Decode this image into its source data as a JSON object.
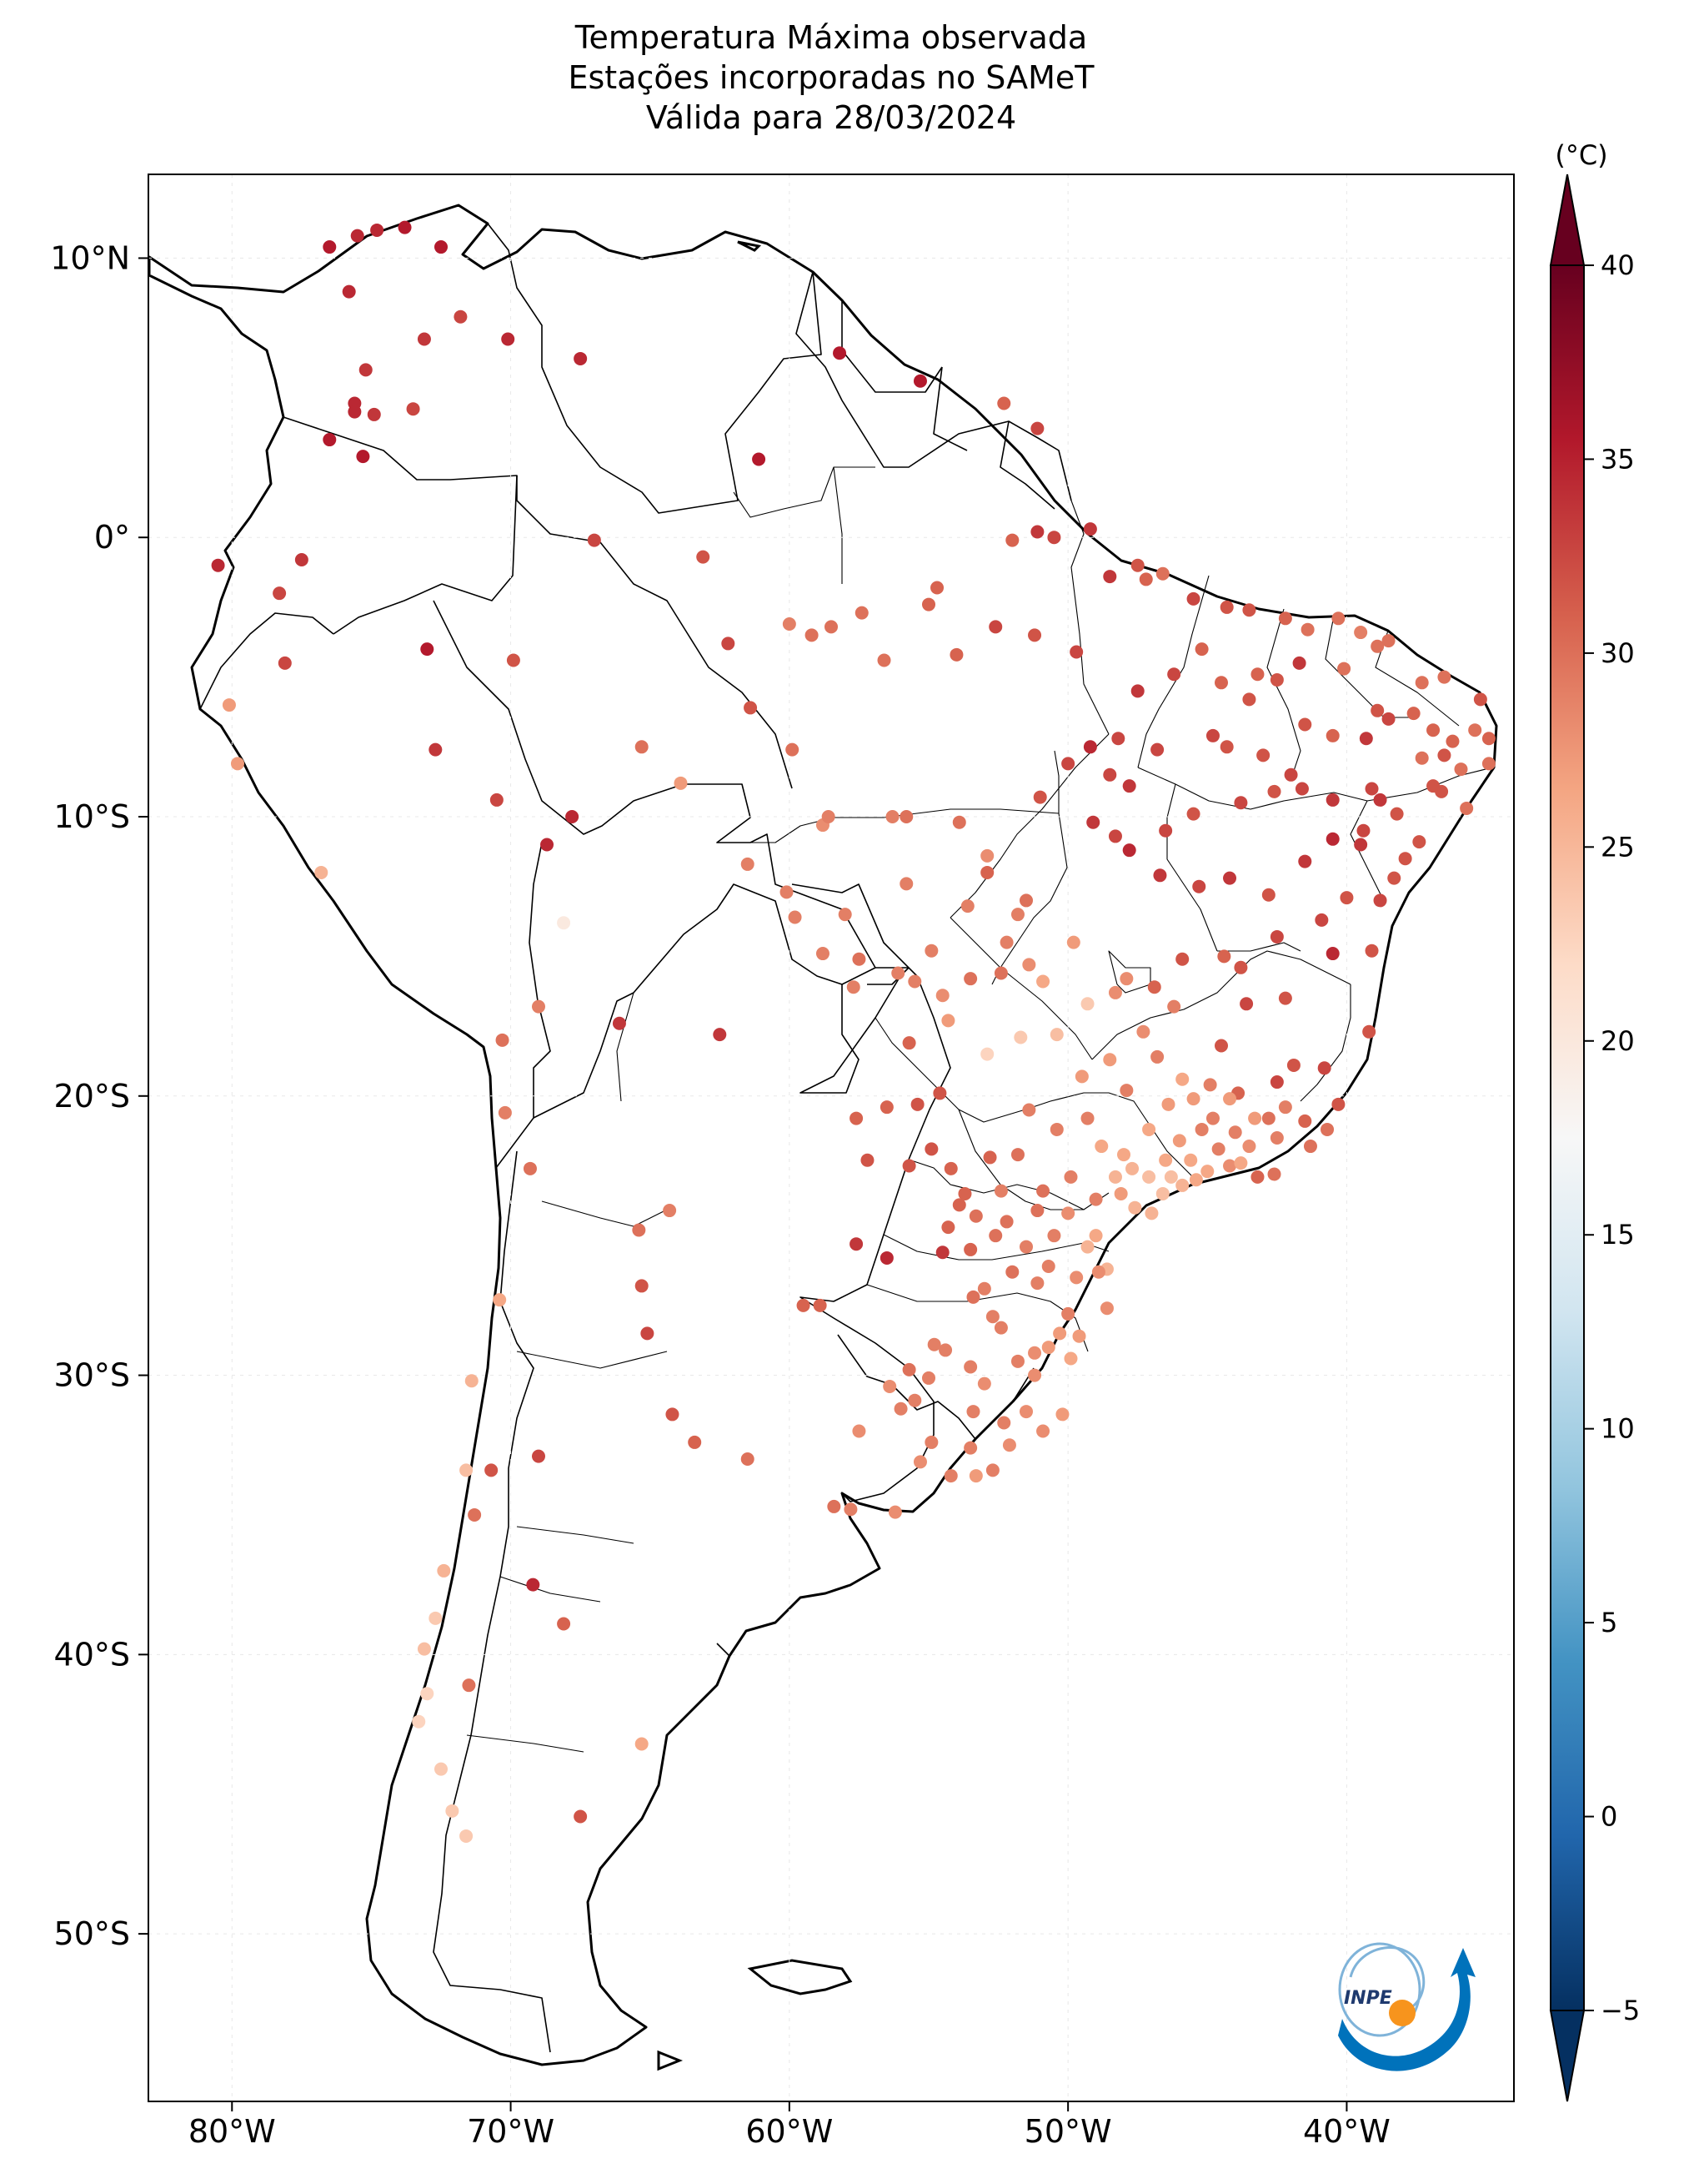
{
  "title": {
    "line1": "Temperatura Máxima observada",
    "line2": "Estações incorporadas no SAMeT",
    "line3": "Válida para 28/03/2024"
  },
  "map": {
    "lon_range": [
      -83,
      -34
    ],
    "lat_range": [
      -56,
      13
    ],
    "lon_ticks": [
      {
        "v": -80,
        "label": "80°W"
      },
      {
        "v": -70,
        "label": "70°W"
      },
      {
        "v": -60,
        "label": "60°W"
      },
      {
        "v": -50,
        "label": "50°W"
      },
      {
        "v": -40,
        "label": "40°W"
      }
    ],
    "lat_ticks": [
      {
        "v": 10,
        "label": "10°N"
      },
      {
        "v": 0,
        "label": "0°"
      },
      {
        "v": -10,
        "label": "10°S"
      },
      {
        "v": -20,
        "label": "20°S"
      },
      {
        "v": -30,
        "label": "30°S"
      },
      {
        "v": -40,
        "label": "40°S"
      },
      {
        "v": -50,
        "label": "50°S"
      }
    ]
  },
  "colorbar": {
    "unit_label": "(°C)",
    "min": -7,
    "max": 42,
    "ticks": [
      40,
      35,
      30,
      25,
      20,
      15,
      10,
      5,
      0,
      -5
    ],
    "colormap": "RdBu_r",
    "colors": [
      "#053061",
      "#2166ac",
      "#4393c3",
      "#92c5de",
      "#d1e5f0",
      "#f7f7f7",
      "#fddbc7",
      "#f4a582",
      "#d6604d",
      "#b2182b",
      "#67001f"
    ]
  },
  "logo": {
    "text": "INPE"
  },
  "stations": [
    [
      -76.5,
      10.4,
      37
    ],
    [
      -75.5,
      10.8,
      36
    ],
    [
      -74.8,
      11,
      36
    ],
    [
      -73.8,
      11.1,
      37
    ],
    [
      -72.5,
      10.4,
      37
    ],
    [
      -75.8,
      8.8,
      36
    ],
    [
      -73.1,
      7.1,
      35
    ],
    [
      -71.8,
      7.9,
      34
    ],
    [
      -70.1,
      7.1,
      36
    ],
    [
      -75.2,
      6,
      35
    ],
    [
      -75.6,
      4.8,
      36
    ],
    [
      -74.9,
      4.4,
      35
    ],
    [
      -75.6,
      4.5,
      36
    ],
    [
      -73.5,
      4.6,
      34
    ],
    [
      -76.5,
      3.5,
      37
    ],
    [
      -75.3,
      2.9,
      37
    ],
    [
      -67.5,
      6.4,
      36
    ],
    [
      -61.1,
      2.8,
      37
    ],
    [
      -58.2,
      6.6,
      37
    ],
    [
      -55.3,
      5.6,
      37
    ],
    [
      -52.3,
      4.8,
      32
    ],
    [
      -51.1,
      3.9,
      34
    ],
    [
      -51.1,
      0.2,
      35
    ],
    [
      -48.5,
      -1.4,
      35
    ],
    [
      -49.2,
      0.3,
      35
    ],
    [
      -50.5,
      0,
      34
    ],
    [
      -47.5,
      -1,
      33
    ],
    [
      -47.2,
      -1.5,
      32
    ],
    [
      -46.6,
      -1.3,
      31
    ],
    [
      -45.5,
      -2.2,
      34
    ],
    [
      -44.3,
      -2.5,
      33
    ],
    [
      -43.5,
      -2.6,
      33
    ],
    [
      -42.2,
      -2.9,
      32
    ],
    [
      -41.4,
      -3.3,
      31
    ],
    [
      -40.3,
      -2.9,
      31
    ],
    [
      -38.5,
      -3.7,
      31
    ],
    [
      -39.5,
      -3.4,
      30
    ],
    [
      -38.9,
      -3.9,
      31
    ],
    [
      -37.3,
      -5.2,
      31
    ],
    [
      -36.5,
      -5,
      31
    ],
    [
      -35.2,
      -5.8,
      33
    ],
    [
      -35.4,
      -6.9,
      31
    ],
    [
      -34.9,
      -7.2,
      32
    ],
    [
      -34.9,
      -8.1,
      31
    ],
    [
      -35.7,
      -9.7,
      31
    ],
    [
      -36.5,
      -7.8,
      33
    ],
    [
      -37.3,
      -7.9,
      31
    ],
    [
      -38.5,
      -6.5,
      34
    ],
    [
      -39.3,
      -7.2,
      35
    ],
    [
      -40.5,
      -7.1,
      32
    ],
    [
      -41.5,
      -6.7,
      33
    ],
    [
      -42.5,
      -5.1,
      33
    ],
    [
      -43.5,
      -5.8,
      33
    ],
    [
      -44.5,
      -5.2,
      32
    ],
    [
      -45.2,
      -4,
      32
    ],
    [
      -46.2,
      -4.9,
      34
    ],
    [
      -47.5,
      -5.5,
      35
    ],
    [
      -48.2,
      -7.2,
      34
    ],
    [
      -49.2,
      -7.5,
      36
    ],
    [
      -48.5,
      -8.5,
      34
    ],
    [
      -49.1,
      -10.2,
      35
    ],
    [
      -48.3,
      -10.7,
      34
    ],
    [
      -47.8,
      -11.2,
      36
    ],
    [
      -46.7,
      -12.1,
      35
    ],
    [
      -45.3,
      -12.5,
      34
    ],
    [
      -44.2,
      -12.2,
      35
    ],
    [
      -42.8,
      -12.8,
      33
    ],
    [
      -41.5,
      -11.6,
      35
    ],
    [
      -40.5,
      -10.8,
      36
    ],
    [
      -39.5,
      -11,
      35
    ],
    [
      -38.3,
      -12.2,
      33
    ],
    [
      -38.8,
      -9.4,
      35
    ],
    [
      -39.1,
      -9,
      34
    ],
    [
      -40.5,
      -9.4,
      35
    ],
    [
      -41.6,
      -9,
      34
    ],
    [
      -42.6,
      -9.1,
      33
    ],
    [
      -43.8,
      -9.5,
      34
    ],
    [
      -45.5,
      -9.9,
      33
    ],
    [
      -46.5,
      -10.5,
      34
    ],
    [
      -47.8,
      -8.9,
      35
    ],
    [
      -44.3,
      -7.5,
      33
    ],
    [
      -43,
      -7.8,
      33
    ],
    [
      -42,
      -8.5,
      34
    ],
    [
      -36.9,
      -8.9,
      33
    ],
    [
      -37.4,
      -10.9,
      33
    ],
    [
      -37.9,
      -11.5,
      33
    ],
    [
      -38.8,
      -13,
      34
    ],
    [
      -39.1,
      -14.8,
      33
    ],
    [
      -40.5,
      -14.9,
      36
    ],
    [
      -39.2,
      -17.7,
      33
    ],
    [
      -40.3,
      -20.3,
      33
    ],
    [
      -41.3,
      -21.8,
      31
    ],
    [
      -43.2,
      -22.9,
      32
    ],
    [
      -42.6,
      -22.8,
      31
    ],
    [
      -40.8,
      -19,
      34
    ],
    [
      -41.9,
      -18.9,
      33
    ],
    [
      -42.5,
      -19.5,
      34
    ],
    [
      -43.9,
      -19.9,
      32
    ],
    [
      -44.8,
      -20.8,
      30
    ],
    [
      -45.2,
      -21.2,
      30
    ],
    [
      -46,
      -21.6,
      28
    ],
    [
      -46.5,
      -22.3,
      27
    ],
    [
      -47.1,
      -22.9,
      25
    ],
    [
      -46.6,
      -23.5,
      25
    ],
    [
      -45.9,
      -23.2,
      26
    ],
    [
      -45,
      -22.7,
      27
    ],
    [
      -44.2,
      -22.5,
      29
    ],
    [
      -43.5,
      -21.8,
      29
    ],
    [
      -42.8,
      -20.8,
      31
    ],
    [
      -44.5,
      -18.2,
      33
    ],
    [
      -43.6,
      -16.7,
      34
    ],
    [
      -42.2,
      -16.5,
      33
    ],
    [
      -44.4,
      -15,
      32
    ],
    [
      -46.9,
      -16.1,
      32
    ],
    [
      -47.9,
      -15.8,
      29
    ],
    [
      -48.3,
      -16.3,
      29
    ],
    [
      -49.3,
      -16.7,
      24
    ],
    [
      -50.4,
      -17.8,
      25
    ],
    [
      -51.7,
      -17.9,
      24
    ],
    [
      -52.9,
      -18.5,
      23
    ],
    [
      -50.9,
      -15.9,
      27
    ],
    [
      -49.8,
      -14.5,
      28
    ],
    [
      -52.2,
      -14.5,
      30
    ],
    [
      -51.5,
      -13,
      31
    ],
    [
      -52.9,
      -12,
      32
    ],
    [
      -53.6,
      -13.2,
      30
    ],
    [
      -54.9,
      -14.8,
      30
    ],
    [
      -55.8,
      -12.4,
      30
    ],
    [
      -56.1,
      -15.6,
      30
    ],
    [
      -57.5,
      -15.1,
      31
    ],
    [
      -58,
      -13.5,
      30
    ],
    [
      -59.8,
      -13.6,
      30
    ],
    [
      -58.8,
      -10.3,
      29
    ],
    [
      -60.1,
      -12.7,
      30
    ],
    [
      -61.5,
      -11.7,
      30
    ],
    [
      -63.9,
      -8.8,
      28
    ],
    [
      -65.3,
      -7.5,
      31
    ],
    [
      -67.8,
      -10,
      36
    ],
    [
      -68.7,
      -11,
      36
    ],
    [
      -70.5,
      -9.4,
      34
    ],
    [
      -72.7,
      -7.6,
      35
    ],
    [
      -69.9,
      -4.4,
      33
    ],
    [
      -73,
      -4,
      37
    ],
    [
      -67,
      -0.1,
      34
    ],
    [
      -63.1,
      -0.7,
      33
    ],
    [
      -62.2,
      -3.8,
      34
    ],
    [
      -60,
      -3.1,
      30
    ],
    [
      -59.2,
      -3.5,
      31
    ],
    [
      -58.5,
      -3.2,
      31
    ],
    [
      -57.4,
      -2.7,
      31
    ],
    [
      -55,
      -2.4,
      32
    ],
    [
      -54.7,
      -1.8,
      32
    ],
    [
      -52.6,
      -3.2,
      34
    ],
    [
      -51.2,
      -3.5,
      33
    ],
    [
      -49.7,
      -4.1,
      34
    ],
    [
      -56.6,
      -4.4,
      31
    ],
    [
      -54,
      -4.2,
      32
    ],
    [
      -61.4,
      -6.1,
      33
    ],
    [
      -59.9,
      -7.6,
      31
    ],
    [
      -58.6,
      -10,
      30
    ],
    [
      -56.3,
      -10,
      30
    ],
    [
      -55.8,
      -10,
      31
    ],
    [
      -53.9,
      -10.2,
      31
    ],
    [
      -52.9,
      -11.4,
      29
    ],
    [
      -51.8,
      -13.5,
      30
    ],
    [
      -51.4,
      -15.3,
      29
    ],
    [
      -53.5,
      -15.8,
      31
    ],
    [
      -55.5,
      -15.9,
      30
    ],
    [
      -57.7,
      -16.1,
      30
    ],
    [
      -54.5,
      -16.4,
      29
    ],
    [
      -54.3,
      -17.3,
      28
    ],
    [
      -52.4,
      -15.6,
      31
    ],
    [
      -55.7,
      -18.1,
      32
    ],
    [
      -54.6,
      -19.9,
      33
    ],
    [
      -55.4,
      -20.3,
      33
    ],
    [
      -56.5,
      -20.4,
      32
    ],
    [
      -57.6,
      -20.8,
      32
    ],
    [
      -54.9,
      -21.9,
      33
    ],
    [
      -55.7,
      -22.5,
      33
    ],
    [
      -54.2,
      -22.6,
      32
    ],
    [
      -53.9,
      -23.9,
      32
    ],
    [
      -52.8,
      -22.2,
      32
    ],
    [
      -51.4,
      -20.5,
      30
    ],
    [
      -51.8,
      -22.1,
      31
    ],
    [
      -50.4,
      -21.2,
      30
    ],
    [
      -49.3,
      -20.8,
      30
    ],
    [
      -48.8,
      -21.8,
      27
    ],
    [
      -49.9,
      -22.9,
      30
    ],
    [
      -48.3,
      -22.9,
      26
    ],
    [
      -47.6,
      -24,
      26
    ],
    [
      -49,
      -25,
      27
    ],
    [
      -49.3,
      -25.4,
      26
    ],
    [
      -50.5,
      -25,
      30
    ],
    [
      -51.5,
      -25.4,
      30
    ],
    [
      -52.6,
      -25,
      31
    ],
    [
      -53.5,
      -25.5,
      32
    ],
    [
      -54.5,
      -25.6,
      35
    ],
    [
      -53,
      -26.9,
      30
    ],
    [
      -51.1,
      -26.7,
      30
    ],
    [
      -50,
      -27.8,
      30
    ],
    [
      -48.6,
      -27.6,
      29
    ],
    [
      -49.6,
      -28.6,
      28
    ],
    [
      -51.2,
      -29.2,
      29
    ],
    [
      -52.4,
      -28.3,
      30
    ],
    [
      -53.5,
      -29.7,
      30
    ],
    [
      -54.8,
      -28.9,
      30
    ],
    [
      -55.7,
      -29.8,
      31
    ],
    [
      -56.4,
      -30.4,
      29
    ],
    [
      -55.5,
      -30.9,
      30
    ],
    [
      -53.4,
      -31.3,
      30
    ],
    [
      -52.3,
      -31.7,
      30
    ],
    [
      -51.2,
      -30,
      29
    ],
    [
      -50.2,
      -31.4,
      28
    ],
    [
      -50.9,
      -32,
      29
    ],
    [
      -52.1,
      -32.5,
      29
    ],
    [
      -53.3,
      -33.6,
      28
    ],
    [
      -54.2,
      -33.6,
      30
    ],
    [
      -56.2,
      -34.9,
      29
    ],
    [
      -57.8,
      -34.8,
      30
    ],
    [
      -58.4,
      -34.7,
      31
    ],
    [
      -61.5,
      -33,
      31
    ],
    [
      -64.2,
      -31.4,
      33
    ],
    [
      -63.4,
      -32.4,
      32
    ],
    [
      -65.3,
      -26.8,
      33
    ],
    [
      -65.1,
      -28.5,
      34
    ],
    [
      -65.4,
      -24.8,
      31
    ],
    [
      -64.3,
      -24.1,
      30
    ],
    [
      -62.5,
      -17.8,
      35
    ],
    [
      -66.1,
      -17.4,
      35
    ],
    [
      -69,
      -16.8,
      30
    ],
    [
      -68.1,
      -13.8,
      20
    ],
    [
      -70.3,
      -18,
      31
    ],
    [
      -70.2,
      -20.6,
      30
    ],
    [
      -69.3,
      -22.6,
      31
    ],
    [
      -70.4,
      -27.3,
      27
    ],
    [
      -71.4,
      -30.2,
      26
    ],
    [
      -71.6,
      -33.4,
      25
    ],
    [
      -70.7,
      -33.4,
      33
    ],
    [
      -71.3,
      -35,
      31
    ],
    [
      -69,
      -32.9,
      34
    ],
    [
      -72.4,
      -37,
      26
    ],
    [
      -72.7,
      -38.7,
      24
    ],
    [
      -73.1,
      -39.8,
      25
    ],
    [
      -73,
      -41.4,
      23
    ],
    [
      -73.3,
      -42.4,
      23
    ],
    [
      -71.5,
      -41.1,
      31
    ],
    [
      -69.2,
      -37.5,
      36
    ],
    [
      -68.1,
      -38.9,
      32
    ],
    [
      -65.3,
      -43.2,
      27
    ],
    [
      -67.5,
      -45.8,
      33
    ],
    [
      -72.1,
      -45.6,
      24
    ],
    [
      -71.6,
      -46.5,
      24
    ],
    [
      -72.5,
      -44.1,
      24
    ],
    [
      -59.5,
      -27.5,
      32
    ],
    [
      -58.9,
      -27.5,
      32
    ],
    [
      -57.6,
      -25.3,
      35
    ],
    [
      -56.5,
      -25.8,
      36
    ],
    [
      -57.2,
      -22.3,
      33
    ],
    [
      -58.8,
      -14.9,
      30
    ],
    [
      -76.8,
      -12,
      26
    ],
    [
      -80.1,
      -6,
      28
    ],
    [
      -79.8,
      -8.1,
      28
    ],
    [
      -78.3,
      -2,
      34
    ],
    [
      -80.5,
      -1,
      36
    ],
    [
      -77.5,
      -0.8,
      35
    ],
    [
      -78.1,
      -4.5,
      34
    ],
    [
      -52,
      -0.1,
      32
    ],
    [
      -50,
      -8.1,
      34
    ],
    [
      -51,
      -9.3,
      33
    ],
    [
      -46.8,
      -7.6,
      34
    ],
    [
      -44.8,
      -7.1,
      34
    ],
    [
      -43.2,
      -4.9,
      32
    ],
    [
      -41.7,
      -4.5,
      35
    ],
    [
      -40.1,
      -4.7,
      31
    ],
    [
      -38.9,
      -6.2,
      33
    ],
    [
      -37.6,
      -6.3,
      32
    ],
    [
      -36.9,
      -6.9,
      32
    ],
    [
      -36.2,
      -7.3,
      32
    ],
    [
      -35.9,
      -8.3,
      31
    ],
    [
      -36.6,
      -9.1,
      33
    ],
    [
      -38.2,
      -9.9,
      33
    ],
    [
      -39.4,
      -10.5,
      34
    ],
    [
      -40,
      -12.9,
      33
    ],
    [
      -40.9,
      -13.7,
      34
    ],
    [
      -42.5,
      -14.3,
      34
    ],
    [
      -43.8,
      -15.4,
      33
    ],
    [
      -45.9,
      -15.1,
      33
    ],
    [
      -46.2,
      -16.8,
      30
    ],
    [
      -47.3,
      -17.7,
      29
    ],
    [
      -48.5,
      -18.7,
      28
    ],
    [
      -49.5,
      -19.3,
      28
    ],
    [
      -47.9,
      -19.8,
      30
    ],
    [
      -46.8,
      -18.6,
      30
    ],
    [
      -45.9,
      -19.4,
      27
    ],
    [
      -44.2,
      -20.1,
      28
    ],
    [
      -43.3,
      -20.8,
      28
    ],
    [
      -42.2,
      -20.4,
      30
    ],
    [
      -41.5,
      -20.9,
      32
    ],
    [
      -40.7,
      -21.2,
      31
    ],
    [
      -42.5,
      -21.5,
      30
    ],
    [
      -43.8,
      -22.4,
      27
    ],
    [
      -45.4,
      -23,
      27
    ],
    [
      -46.3,
      -22.9,
      25
    ],
    [
      -47.7,
      -22.6,
      26
    ],
    [
      -48.1,
      -23.5,
      28
    ],
    [
      -47,
      -24.2,
      26
    ],
    [
      -48.6,
      -26.2,
      26
    ],
    [
      -49.7,
      -26.5,
      29
    ],
    [
      -50.7,
      -26.1,
      30
    ],
    [
      -52,
      -26.3,
      31
    ],
    [
      -53.4,
      -27.2,
      31
    ],
    [
      -52.7,
      -27.9,
      30
    ],
    [
      -50.3,
      -28.5,
      28
    ],
    [
      -49.9,
      -29.4,
      27
    ],
    [
      -51.8,
      -29.5,
      30
    ],
    [
      -53,
      -30.3,
      29
    ],
    [
      -54.4,
      -29.1,
      30
    ],
    [
      -55,
      -30.1,
      30
    ],
    [
      -56,
      -31.2,
      30
    ],
    [
      -57.5,
      -32,
      29
    ],
    [
      -54.9,
      -32.4,
      30
    ],
    [
      -55.3,
      -33.1,
      29
    ],
    [
      -53.5,
      -32.6,
      30
    ],
    [
      -52.7,
      -33.4,
      30
    ],
    [
      -51.5,
      -31.3,
      29
    ],
    [
      -50.7,
      -29,
      28
    ],
    [
      -48.9,
      -26.3,
      29
    ],
    [
      -51.1,
      -24.1,
      31
    ],
    [
      -52.2,
      -24.5,
      31
    ],
    [
      -53.3,
      -24.3,
      31
    ],
    [
      -54.3,
      -24.7,
      32
    ],
    [
      -53.7,
      -23.5,
      32
    ],
    [
      -52.4,
      -23.4,
      30
    ],
    [
      -50.9,
      -23.4,
      31
    ],
    [
      -50,
      -24.2,
      29
    ],
    [
      -49,
      -23.7,
      30
    ],
    [
      -48,
      -22.1,
      27
    ],
    [
      -47.1,
      -21.2,
      27
    ],
    [
      -46.4,
      -20.3,
      28
    ],
    [
      -45.5,
      -20.1,
      28
    ],
    [
      -44.9,
      -19.6,
      30
    ],
    [
      -44,
      -21.3,
      30
    ],
    [
      -44.6,
      -21.9,
      30
    ],
    [
      -45.6,
      -22.3,
      27
    ]
  ]
}
